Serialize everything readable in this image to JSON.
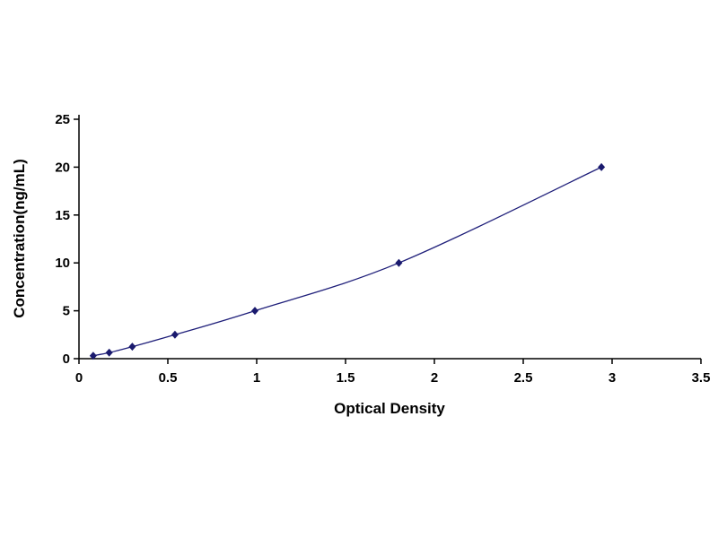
{
  "page": {
    "background_color": "#ffffff"
  },
  "chart_data": {
    "type": "line",
    "title": "",
    "xlabel": "Optical Density",
    "ylabel": "Concentration(ng/mL)",
    "x": [
      0.08,
      0.17,
      0.3,
      0.54,
      0.99,
      1.8,
      2.94
    ],
    "y": [
      0.31,
      0.63,
      1.25,
      2.5,
      5,
      10,
      20
    ],
    "xlim": [
      0,
      3.5
    ],
    "ylim": [
      0,
      25
    ],
    "xticks": [
      0,
      0.5,
      1,
      1.5,
      2,
      2.5,
      3,
      3.5
    ],
    "yticks": [
      0,
      5,
      10,
      15,
      20,
      25
    ],
    "grid": false,
    "legend": null,
    "marker": "diamond",
    "line_color": "#1f1f7a",
    "marker_color": "#1a1a6e",
    "axis_color": "#000000"
  }
}
